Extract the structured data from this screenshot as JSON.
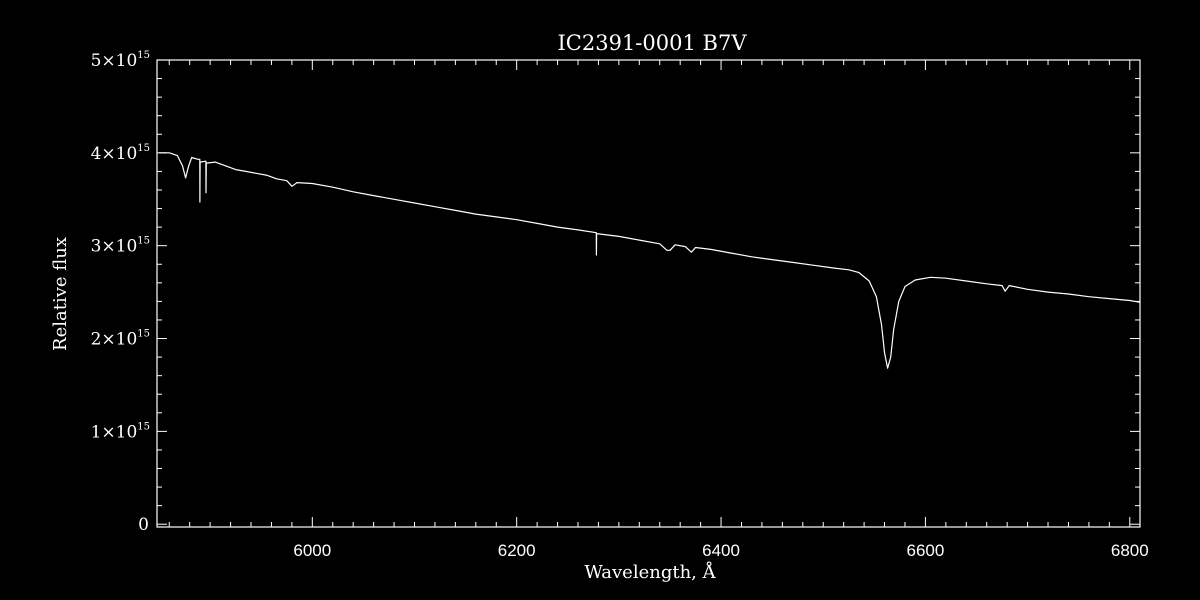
{
  "chart_data": {
    "type": "line",
    "title": "IC2391-0001   B7V",
    "xlabel": "Wavelength, Å",
    "ylabel": "Relative flux",
    "xlim": [
      5848,
      6810
    ],
    "ylim": [
      -30000000000000.0,
      5000000000000000.0
    ],
    "x_ticks": [
      6000,
      6200,
      6400,
      6600,
      6800
    ],
    "x_tick_labels": [
      "6000",
      "6200",
      "6400",
      "6600",
      "6800"
    ],
    "y_ticks": [
      0,
      1000000000000000.0,
      2000000000000000.0,
      3000000000000000.0,
      4000000000000000.0,
      5000000000000000.0
    ],
    "y_tick_labels": [
      {
        "mant": "0",
        "exp": ""
      },
      {
        "mant": "1×10",
        "exp": "15"
      },
      {
        "mant": "2×10",
        "exp": "15"
      },
      {
        "mant": "3×10",
        "exp": "15"
      },
      {
        "mant": "4×10",
        "exp": "15"
      },
      {
        "mant": "5×10",
        "exp": "15"
      }
    ],
    "series": [
      {
        "color": "#ffffff",
        "points": [
          [
            5850,
            4000000000000000.0
          ],
          [
            5860,
            4000000000000000.0
          ],
          [
            5868,
            3970000000000000.0
          ],
          [
            5873,
            3860000000000000.0
          ],
          [
            5876,
            3730000000000000.0
          ],
          [
            5879,
            3860000000000000.0
          ],
          [
            5882,
            3950000000000000.0
          ],
          [
            5888,
            3930000000000000.0
          ],
          [
            5889.9,
            3930000000000000.0
          ],
          [
            5890,
            3470000000000000.0
          ],
          [
            5890.2,
            3900000000000000.0
          ],
          [
            5895.9,
            3910000000000000.0
          ],
          [
            5896,
            3570000000000000.0
          ],
          [
            5896.2,
            3890000000000000.0
          ],
          [
            5905,
            3900000000000000.0
          ],
          [
            5915,
            3860000000000000.0
          ],
          [
            5925,
            3820000000000000.0
          ],
          [
            5935,
            3800000000000000.0
          ],
          [
            5945,
            3780000000000000.0
          ],
          [
            5955,
            3760000000000000.0
          ],
          [
            5965,
            3720000000000000.0
          ],
          [
            5975,
            3700000000000000.0
          ],
          [
            5980,
            3640000000000000.0
          ],
          [
            5985,
            3680000000000000.0
          ],
          [
            6000,
            3670000000000000.0
          ],
          [
            6020,
            3630000000000000.0
          ],
          [
            6040,
            3580000000000000.0
          ],
          [
            6060,
            3540000000000000.0
          ],
          [
            6080,
            3500000000000000.0
          ],
          [
            6100,
            3460000000000000.0
          ],
          [
            6120,
            3420000000000000.0
          ],
          [
            6140,
            3380000000000000.0
          ],
          [
            6160,
            3340000000000000.0
          ],
          [
            6180,
            3310000000000000.0
          ],
          [
            6200,
            3280000000000000.0
          ],
          [
            6220,
            3240000000000000.0
          ],
          [
            6240,
            3200000000000000.0
          ],
          [
            6260,
            3170000000000000.0
          ],
          [
            6277.9,
            3140000000000000.0
          ],
          [
            6278,
            2900000000000000.0
          ],
          [
            6278.2,
            3130000000000000.0
          ],
          [
            6300,
            3100000000000000.0
          ],
          [
            6320,
            3060000000000000.0
          ],
          [
            6340,
            3020000000000000.0
          ],
          [
            6347,
            2950000000000000.0
          ],
          [
            6350,
            2950000000000000.0
          ],
          [
            6355,
            3010000000000000.0
          ],
          [
            6365,
            2990000000000000.0
          ],
          [
            6371,
            2930000000000000.0
          ],
          [
            6375,
            2980000000000000.0
          ],
          [
            6390,
            2960000000000000.0
          ],
          [
            6410,
            2920000000000000.0
          ],
          [
            6430,
            2880000000000000.0
          ],
          [
            6450,
            2850000000000000.0
          ],
          [
            6470,
            2820000000000000.0
          ],
          [
            6490,
            2790000000000000.0
          ],
          [
            6510,
            2760000000000000.0
          ],
          [
            6525,
            2740000000000000.0
          ],
          [
            6535,
            2710000000000000.0
          ],
          [
            6545,
            2620000000000000.0
          ],
          [
            6552,
            2450000000000000.0
          ],
          [
            6557,
            2150000000000000.0
          ],
          [
            6560,
            1850000000000000.0
          ],
          [
            6563,
            1680000000000000.0
          ],
          [
            6566,
            1800000000000000.0
          ],
          [
            6569,
            2100000000000000.0
          ],
          [
            6574,
            2400000000000000.0
          ],
          [
            6580,
            2560000000000000.0
          ],
          [
            6590,
            2630000000000000.0
          ],
          [
            6605,
            2660000000000000.0
          ],
          [
            6620,
            2650000000000000.0
          ],
          [
            6640,
            2620000000000000.0
          ],
          [
            6660,
            2590000000000000.0
          ],
          [
            6675,
            2570000000000000.0
          ],
          [
            6678,
            2510000000000000.0
          ],
          [
            6682,
            2570000000000000.0
          ],
          [
            6700,
            2530000000000000.0
          ],
          [
            6720,
            2500000000000000.0
          ],
          [
            6740,
            2480000000000000.0
          ],
          [
            6760,
            2450000000000000.0
          ],
          [
            6780,
            2430000000000000.0
          ],
          [
            6800,
            2410000000000000.0
          ],
          [
            6810,
            2390000000000000.0
          ]
        ]
      }
    ],
    "grid": false,
    "background": "#000000",
    "foreground": "#ffffff"
  }
}
